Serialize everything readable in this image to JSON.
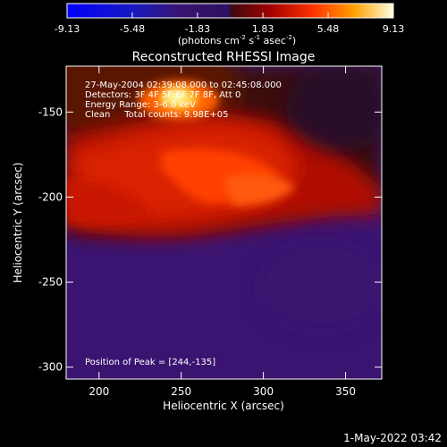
{
  "chart_data": {
    "type": "heatmap",
    "title": "Reconstructed RHESSI Image",
    "xlabel": "Heliocentric X (arcsec)",
    "ylabel": "Heliocentric Y (arcsec)",
    "xlim": [
      180,
      372
    ],
    "ylim": [
      -307,
      -123
    ],
    "x_ticks": [
      200,
      250,
      300,
      350
    ],
    "y_ticks": [
      -150,
      -200,
      -250,
      -300
    ],
    "colorbar": {
      "ticks": [
        "-9.13",
        "-5.48",
        "-1.83",
        "1.83",
        "5.48",
        "9.13"
      ],
      "range": [
        -9.13,
        9.13
      ],
      "unit_base": "(photons cm",
      "unit_exp1": "-2",
      "unit_mid": " s",
      "unit_exp2": "-1",
      "unit_mid2": " asec",
      "unit_exp3": "-2",
      "unit_end": ")"
    },
    "annotations": [
      "27-May-2004 02:39:08.000 to 02:45:08.000",
      "Detectors: 3F 4F 5F 6F 7F 8F, Att 0",
      "Energy Range: 3-6.0 keV",
      "Clean     Total counts: 9.98E+05"
    ],
    "peak_label": "Position of Peak = [244,-135]",
    "peak": [
      244,
      -135
    ]
  },
  "footer": {
    "date": "1-May-2022 03:42"
  }
}
